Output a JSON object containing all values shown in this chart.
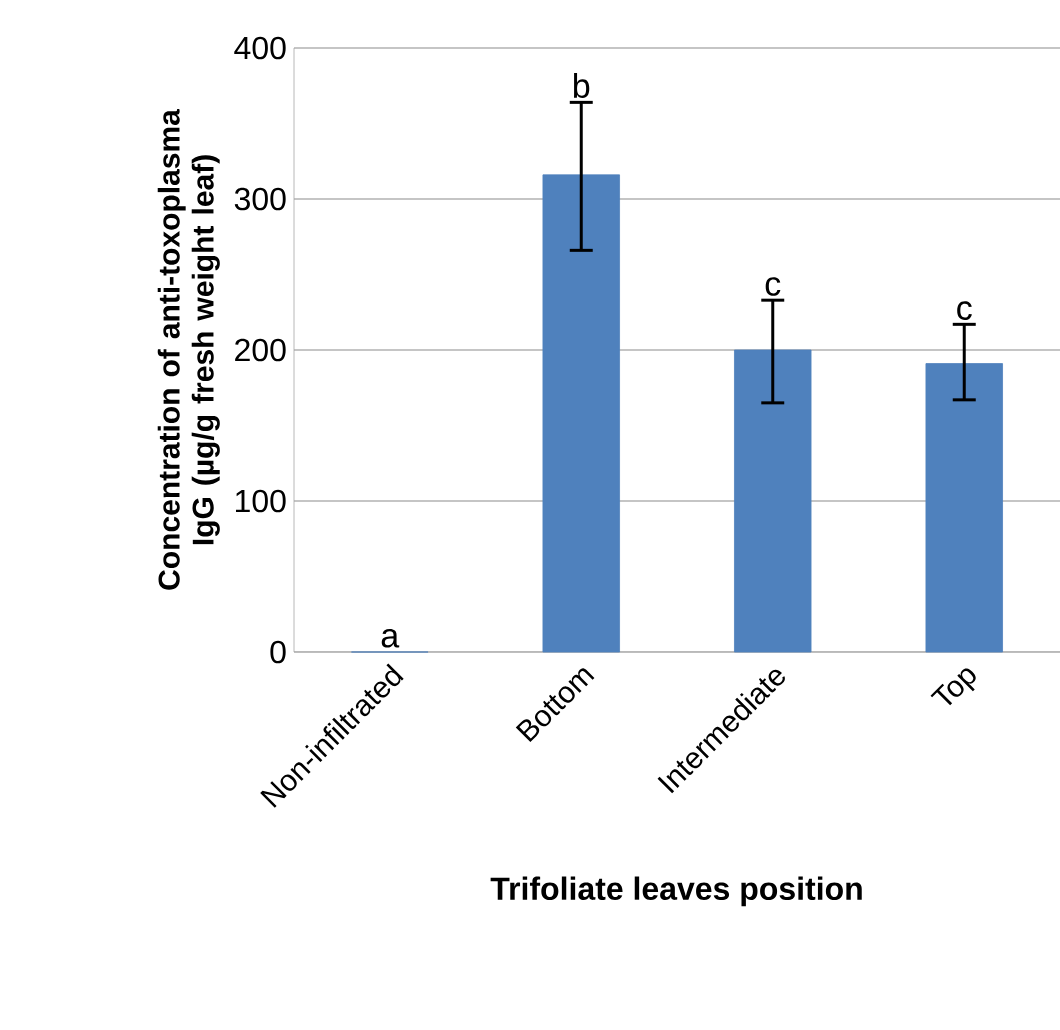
{
  "chart_data": {
    "type": "bar",
    "xlabel": "Trifoliate leaves position",
    "ylabel": "Concentration of anti-toxoplasma IgG (µg/g fresh weight leaf)",
    "categories": [
      "Non-infiltrated",
      "Bottom",
      "Intermediate",
      "Top"
    ],
    "values": [
      0,
      316,
      200,
      191
    ],
    "errors": [
      null,
      [
        266,
        364
      ],
      [
        165,
        233
      ],
      [
        167,
        217
      ]
    ],
    "color": "#4f81bd",
    "ylim": [
      0,
      400
    ],
    "yticks": [
      0,
      100,
      200,
      300,
      400
    ],
    "grid": "y",
    "annotations": [
      {
        "text": "a",
        "x": "Non-infiltrated",
        "y": 0
      },
      {
        "text": "b",
        "x": "Bottom",
        "y": 364
      },
      {
        "text": "c",
        "x": "Intermediate",
        "y": 233
      },
      {
        "text": "c",
        "x": "Top",
        "y": 217
      }
    ]
  }
}
